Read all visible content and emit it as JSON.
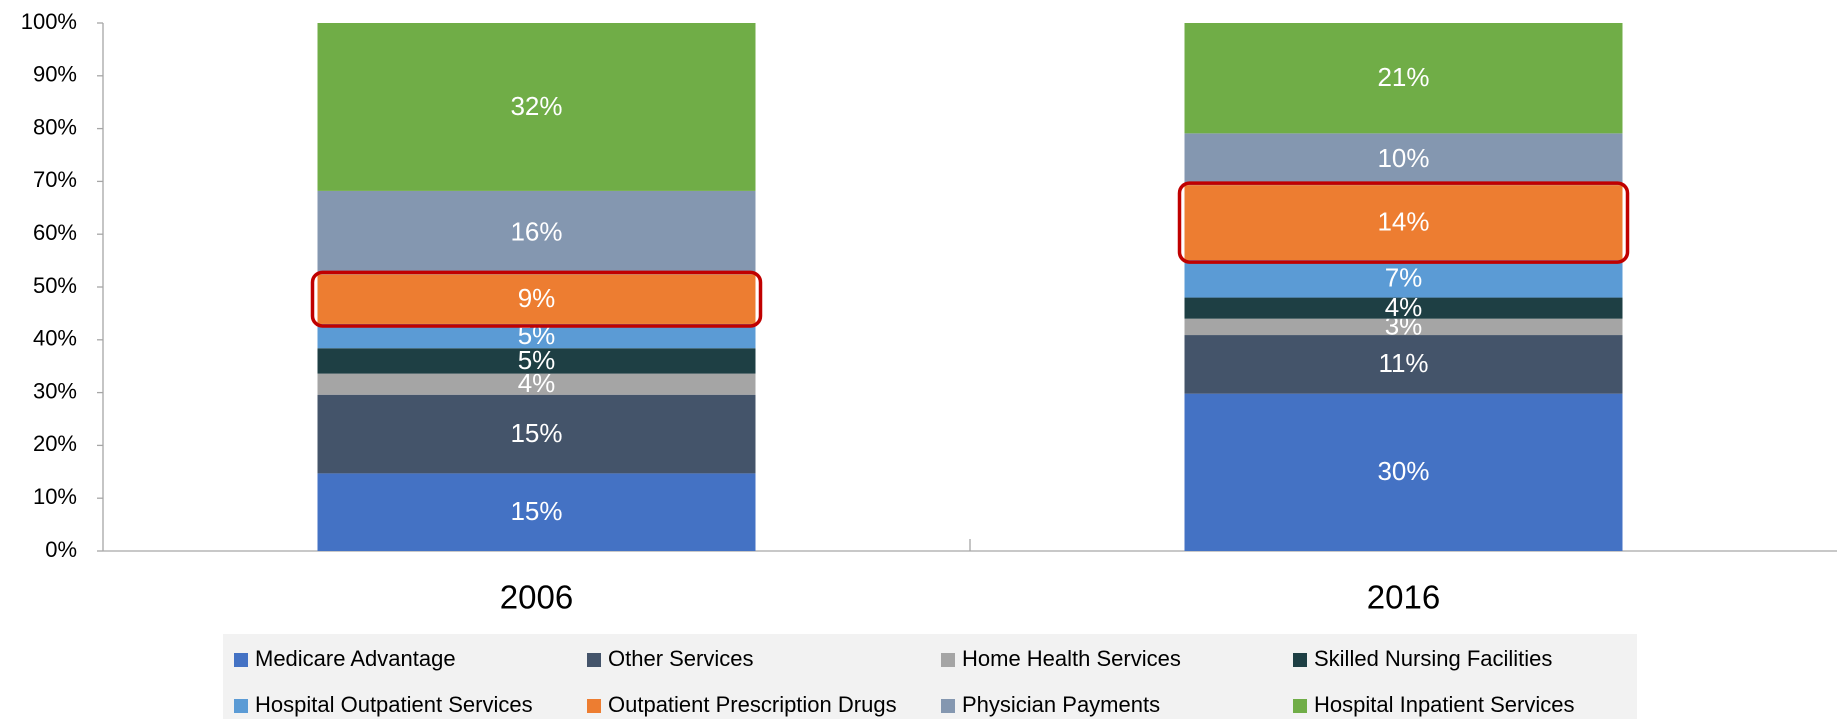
{
  "chart_data": {
    "type": "stacked_bar",
    "categories": [
      "2006",
      "2016"
    ],
    "series": [
      {
        "name": "Medicare Advantage",
        "color": "#4472c4",
        "values": [
          14.7,
          29.8
        ],
        "value_labels": [
          "15%",
          "30%"
        ]
      },
      {
        "name": "Other Services",
        "color": "#44546a",
        "values": [
          14.9,
          11.1
        ],
        "value_labels": [
          "15%",
          "11%"
        ]
      },
      {
        "name": "Home Health Services",
        "color": "#a5a5a5",
        "values": [
          4.0,
          3.1
        ],
        "value_labels": [
          "4%",
          "3%"
        ]
      },
      {
        "name": "Skilled Nursing Facilities",
        "color": "#1e3f44",
        "values": [
          4.8,
          4.0
        ],
        "value_labels": [
          "5%",
          "4%"
        ]
      },
      {
        "name": "Hospital Outpatient Services",
        "color": "#5b9bd5",
        "values": [
          4.6,
          7.1
        ],
        "value_labels": [
          "5%",
          "7%"
        ]
      },
      {
        "name": "Outpatient Prescription Drugs",
        "color": "#ed7d31",
        "values": [
          9.4,
          14.2
        ],
        "value_labels": [
          "9%",
          "14%"
        ],
        "highlight": true
      },
      {
        "name": "Physician Payments",
        "color": "#8497b0",
        "values": [
          15.8,
          9.8
        ],
        "value_labels": [
          "16%",
          "10%"
        ]
      },
      {
        "name": "Hospital Inpatient Services",
        "color": "#70ad47",
        "values": [
          31.8,
          20.9
        ],
        "value_labels": [
          "32%",
          "21%"
        ]
      }
    ],
    "ylim": [
      0,
      100
    ],
    "yticks": [
      {
        "value": 0,
        "label": "0%"
      },
      {
        "value": 10,
        "label": "10%"
      },
      {
        "value": 20,
        "label": "20%"
      },
      {
        "value": 30,
        "label": "30%"
      },
      {
        "value": 40,
        "label": "40%"
      },
      {
        "value": 50,
        "label": "50%"
      },
      {
        "value": 60,
        "label": "60%"
      },
      {
        "value": 70,
        "label": "70%"
      },
      {
        "value": 80,
        "label": "80%"
      },
      {
        "value": 90,
        "label": "90%"
      },
      {
        "value": 100,
        "label": "100%"
      }
    ],
    "legend": "bottom"
  }
}
